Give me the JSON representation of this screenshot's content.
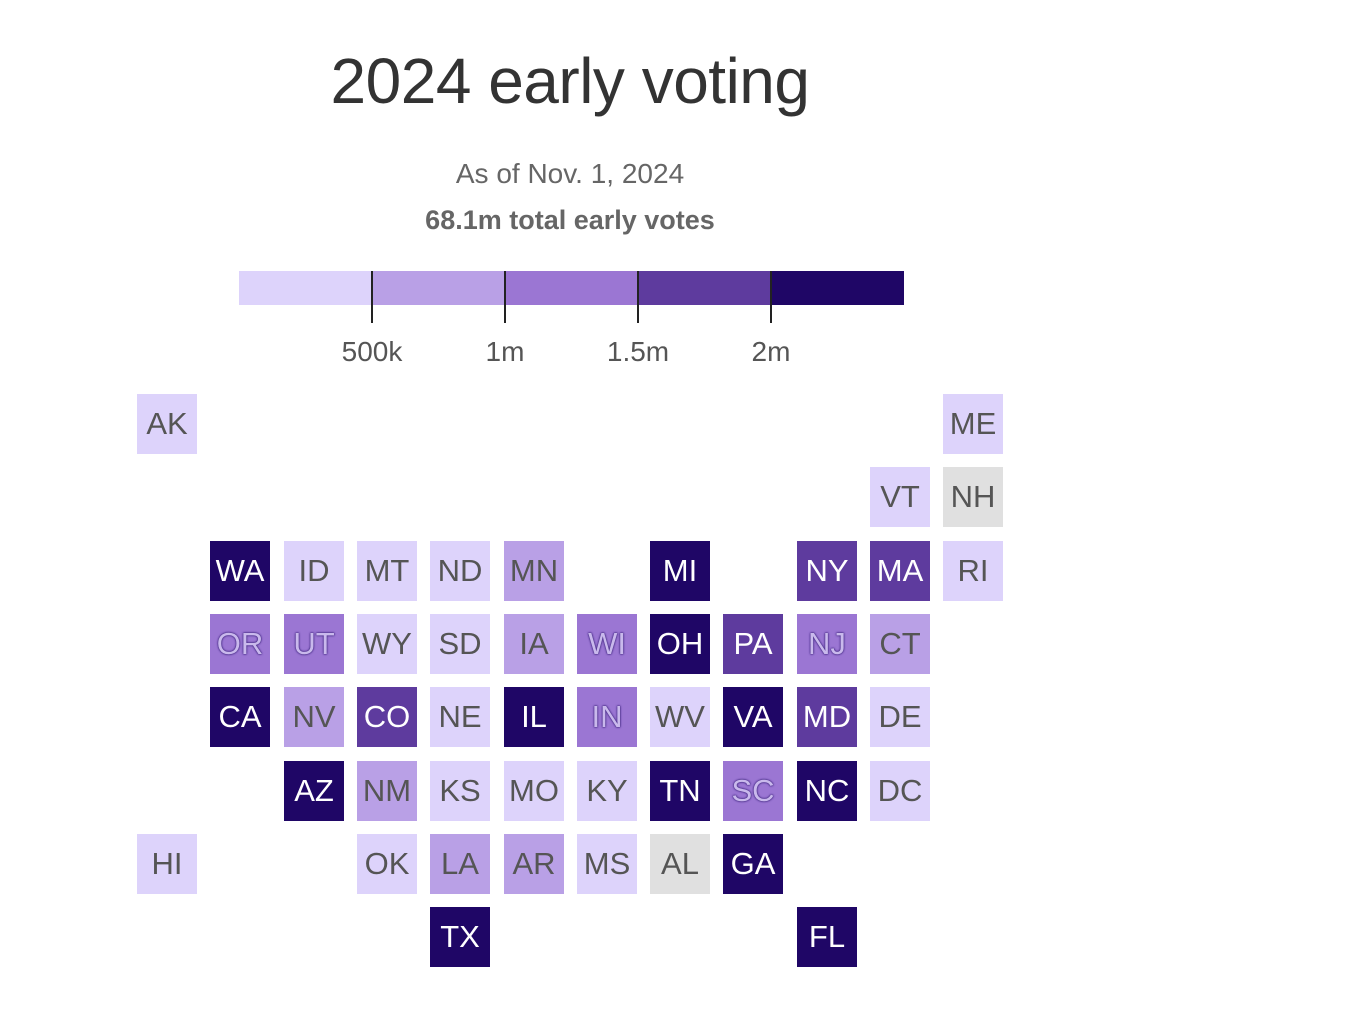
{
  "title": "2024 early voting",
  "subtitle": "As of Nov. 1, 2024",
  "total": "68.1m total early votes",
  "legend": {
    "bins": [
      {
        "label": "",
        "color": "#ddd3fb"
      },
      {
        "label": "500k",
        "color": "#b9a0e6"
      },
      {
        "label": "1m",
        "color": "#9b76d3"
      },
      {
        "label": "1.5m",
        "color": "#5e3b9e"
      },
      {
        "label": "2m",
        "color": "#1f0666"
      }
    ]
  },
  "no_data_color": "#e0e0e0",
  "states": [
    {
      "abbr": "AK",
      "bin": 0
    },
    {
      "abbr": "ME",
      "bin": 0
    },
    {
      "abbr": "VT",
      "bin": 0
    },
    {
      "abbr": "NH",
      "bin": null
    },
    {
      "abbr": "WA",
      "bin": 4
    },
    {
      "abbr": "ID",
      "bin": 0
    },
    {
      "abbr": "MT",
      "bin": 0
    },
    {
      "abbr": "ND",
      "bin": 0
    },
    {
      "abbr": "MN",
      "bin": 1
    },
    {
      "abbr": "MI",
      "bin": 4
    },
    {
      "abbr": "NY",
      "bin": 3
    },
    {
      "abbr": "MA",
      "bin": 3
    },
    {
      "abbr": "RI",
      "bin": 0
    },
    {
      "abbr": "OR",
      "bin": 2
    },
    {
      "abbr": "UT",
      "bin": 2
    },
    {
      "abbr": "WY",
      "bin": 0
    },
    {
      "abbr": "SD",
      "bin": 0
    },
    {
      "abbr": "IA",
      "bin": 1
    },
    {
      "abbr": "WI",
      "bin": 2
    },
    {
      "abbr": "OH",
      "bin": 4
    },
    {
      "abbr": "PA",
      "bin": 3
    },
    {
      "abbr": "NJ",
      "bin": 2
    },
    {
      "abbr": "CT",
      "bin": 1
    },
    {
      "abbr": "CA",
      "bin": 4
    },
    {
      "abbr": "NV",
      "bin": 1
    },
    {
      "abbr": "CO",
      "bin": 3
    },
    {
      "abbr": "NE",
      "bin": 0
    },
    {
      "abbr": "IL",
      "bin": 4
    },
    {
      "abbr": "IN",
      "bin": 2
    },
    {
      "abbr": "WV",
      "bin": 0
    },
    {
      "abbr": "VA",
      "bin": 4
    },
    {
      "abbr": "MD",
      "bin": 3
    },
    {
      "abbr": "DE",
      "bin": 0
    },
    {
      "abbr": "AZ",
      "bin": 4
    },
    {
      "abbr": "NM",
      "bin": 1
    },
    {
      "abbr": "KS",
      "bin": 0
    },
    {
      "abbr": "MO",
      "bin": 0
    },
    {
      "abbr": "KY",
      "bin": 0
    },
    {
      "abbr": "TN",
      "bin": 4
    },
    {
      "abbr": "SC",
      "bin": 2
    },
    {
      "abbr": "NC",
      "bin": 4
    },
    {
      "abbr": "DC",
      "bin": 0
    },
    {
      "abbr": "HI",
      "bin": 0
    },
    {
      "abbr": "OK",
      "bin": 0
    },
    {
      "abbr": "LA",
      "bin": 1
    },
    {
      "abbr": "AR",
      "bin": 1
    },
    {
      "abbr": "MS",
      "bin": 0
    },
    {
      "abbr": "AL",
      "bin": null
    },
    {
      "abbr": "GA",
      "bin": 4
    },
    {
      "abbr": "TX",
      "bin": 4
    },
    {
      "abbr": "FL",
      "bin": 4
    }
  ]
}
